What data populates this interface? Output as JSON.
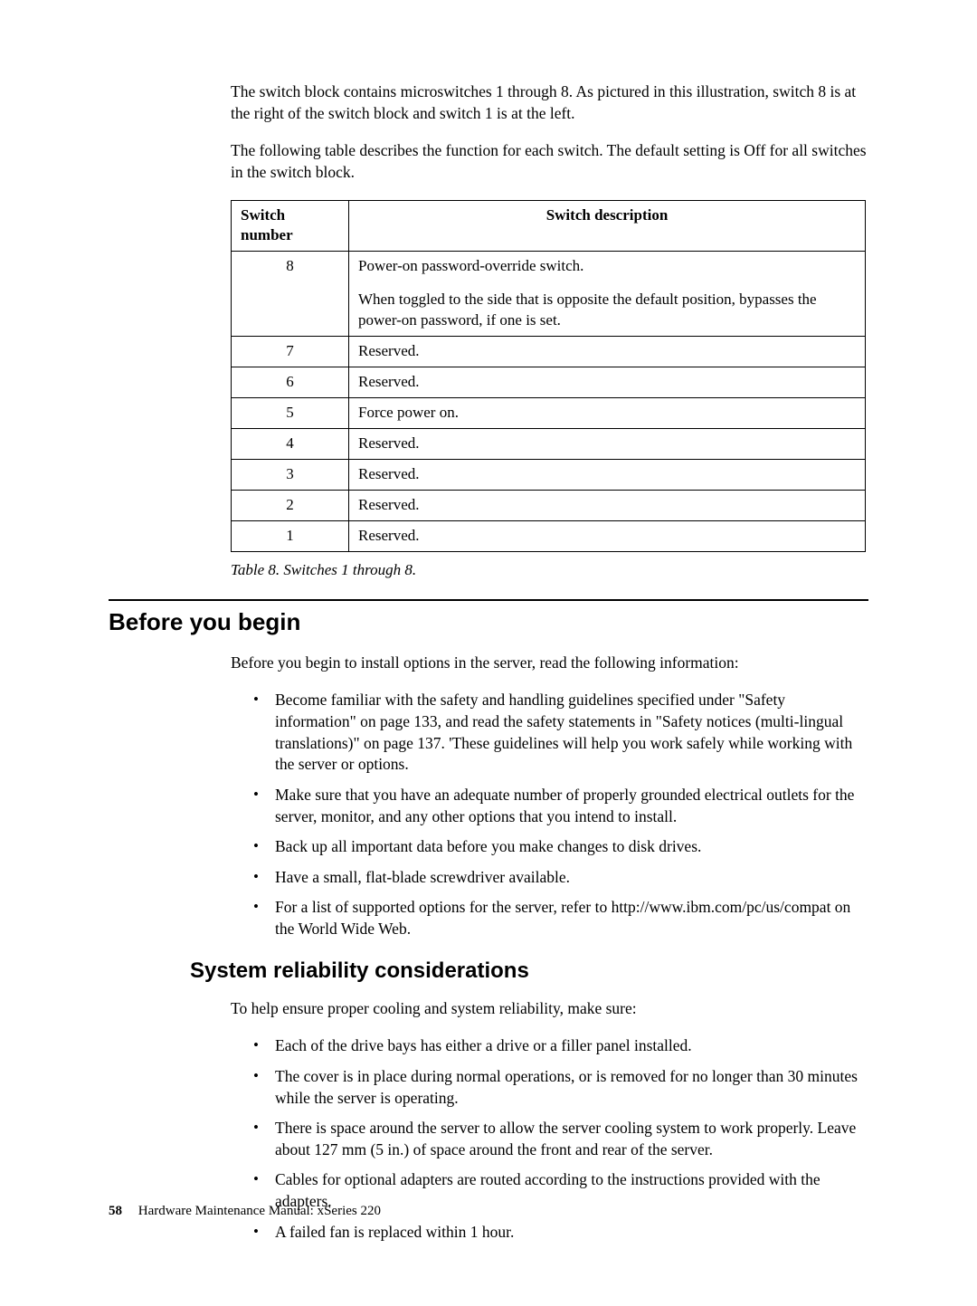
{
  "intro": {
    "p1": "The switch block contains microswitches 1 through 8.  As pictured in this illustration, switch 8 is at the right of the switch block and switch 1 is at the left.",
    "p2": "The following table describes the function for each switch.  The default setting is Off for all switches in the switch block."
  },
  "table": {
    "columns": [
      "Switch number",
      "Switch description"
    ],
    "rows": [
      {
        "num": "8",
        "desc_line1": "Power-on password-override switch.",
        "desc_line2": "When toggled to the side that is opposite the default position, bypasses the power-on password, if one is set."
      },
      {
        "num": "7",
        "desc": "Reserved."
      },
      {
        "num": "6",
        "desc": "Reserved."
      },
      {
        "num": "5",
        "desc": "Force power on."
      },
      {
        "num": "4",
        "desc": "Reserved."
      },
      {
        "num": "3",
        "desc": "Reserved."
      },
      {
        "num": "2",
        "desc": "Reserved."
      },
      {
        "num": "1",
        "desc": "Reserved."
      }
    ],
    "caption": "Table 8. Switches 1 through 8."
  },
  "before_you_begin": {
    "heading": "Before you begin",
    "intro": "Before you begin to install options in the server, read the following information:",
    "bullets": [
      "Become familiar with the safety and handling guidelines specified under \"Safety information\" on page 133,  and read the safety statements in \"Safety notices (multi-lingual translations)\" on page 137.  'These guidelines will help you work safely while working with the server or options.",
      "Make sure that you have an adequate number of properly grounded electrical outlets for the server, monitor, and any other options that you intend to install.",
      "Back up all important data before you make changes to disk drives.",
      "Have a small, flat-blade screwdriver available.",
      "For a list of supported options for the server, refer to http://www.ibm.com/pc/us/compat on the World Wide Web."
    ]
  },
  "system_reliability": {
    "heading": "System reliability considerations",
    "intro": "To help ensure proper cooling and system reliability, make sure:",
    "bullets": [
      "Each of the drive bays has either a drive or a filler panel installed.",
      "The cover is in place during normal operations, or is removed for no longer than 30 minutes while the server is operating.",
      "There is space around the server to allow the server cooling system to work properly.  Leave about 127 mm (5 in.) of space around the front and rear of the server.",
      "Cables for optional adapters are routed according to the instructions provided with the adapters.",
      "A failed fan is replaced within 1 hour."
    ]
  },
  "footer": {
    "page_number": "58",
    "doc_title": "Hardware Maintenance Manual: xSeries 220"
  }
}
